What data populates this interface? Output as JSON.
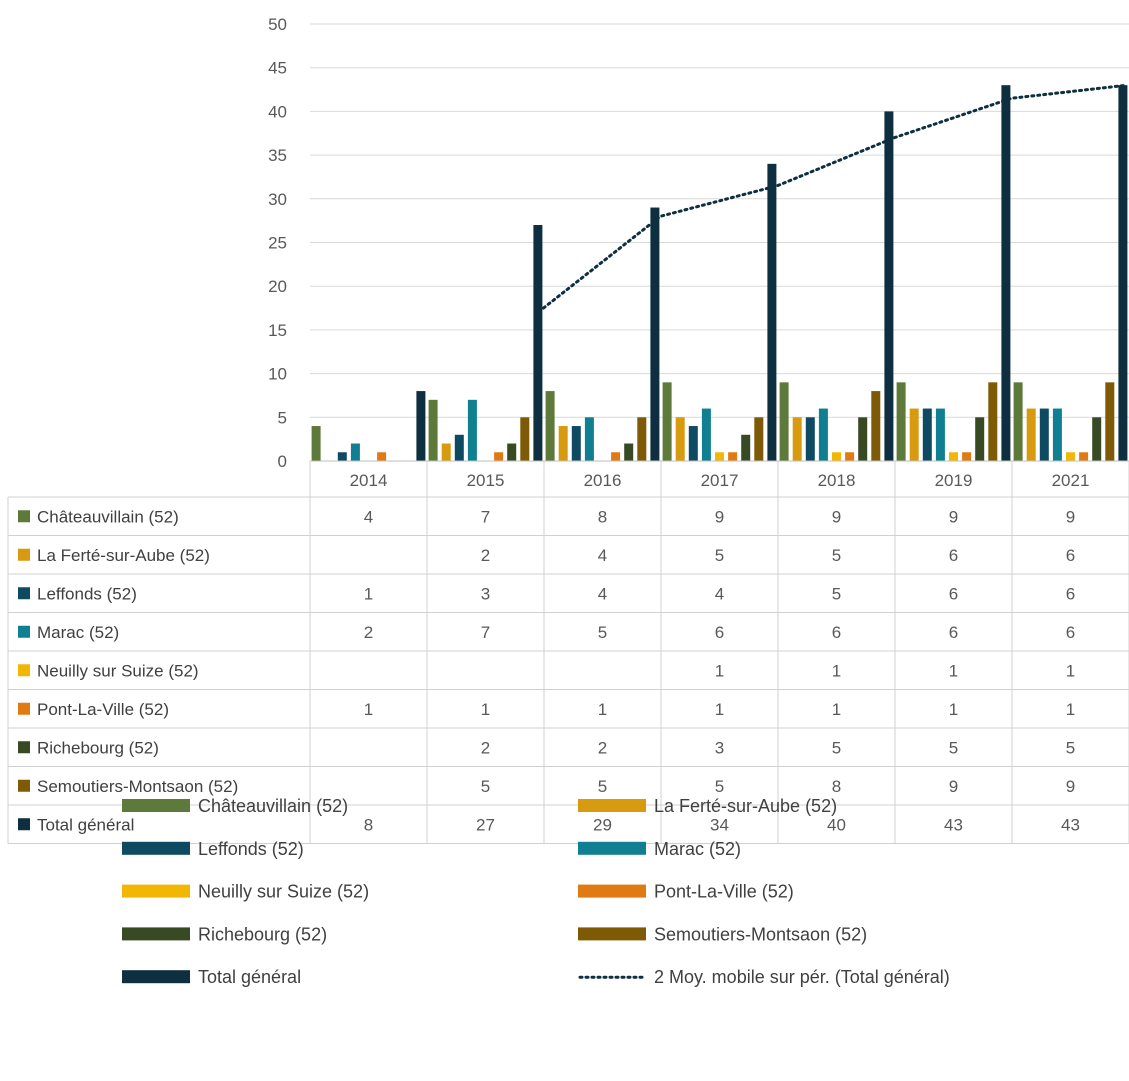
{
  "chart_data": {
    "type": "bar",
    "title": "",
    "xlabel": "",
    "ylabel": "",
    "ylim": [
      0,
      50
    ],
    "yticks": [
      0,
      5,
      10,
      15,
      20,
      25,
      30,
      35,
      40,
      45,
      50
    ],
    "grid": true,
    "legend_position": "bottom",
    "data_table": true,
    "categories": [
      "2014",
      "2015",
      "2016",
      "2017",
      "2018",
      "2019",
      "2021"
    ],
    "series": [
      {
        "name": "Châteauvillain (52)",
        "color": "#5e7a3a",
        "values": [
          4,
          7,
          8,
          9,
          9,
          9,
          9
        ]
      },
      {
        "name": "La Ferté-sur-Aube (52)",
        "color": "#d89a0f",
        "values": [
          null,
          2,
          4,
          5,
          5,
          6,
          6
        ]
      },
      {
        "name": "Leffonds (52)",
        "color": "#0f4a63",
        "values": [
          1,
          3,
          4,
          4,
          5,
          6,
          6
        ]
      },
      {
        "name": "Marac (52)",
        "color": "#0f7f91",
        "values": [
          2,
          7,
          5,
          6,
          6,
          6,
          6
        ]
      },
      {
        "name": "Neuilly sur Suize (52)",
        "color": "#f2b705",
        "values": [
          null,
          null,
          null,
          1,
          1,
          1,
          1
        ]
      },
      {
        "name": "Pont-La-Ville (52)",
        "color": "#e07b13",
        "values": [
          1,
          1,
          1,
          1,
          1,
          1,
          1
        ]
      },
      {
        "name": "Richebourg (52)",
        "color": "#384a24",
        "values": [
          null,
          2,
          2,
          3,
          5,
          5,
          5
        ]
      },
      {
        "name": "Semoutiers-Montsaon (52)",
        "color": "#7e5a06",
        "values": [
          null,
          5,
          5,
          5,
          8,
          9,
          9
        ]
      },
      {
        "name": "Total général",
        "color": "#0d2f40",
        "values": [
          8,
          27,
          29,
          34,
          40,
          43,
          43
        ]
      }
    ],
    "trendline": {
      "name": "2 Moy. mobile sur pér. (Total général)",
      "type": "moving_average",
      "period": 2,
      "color": "#0d2f40",
      "values": [
        null,
        17.5,
        28,
        31.5,
        37,
        41.5,
        43
      ]
    }
  }
}
